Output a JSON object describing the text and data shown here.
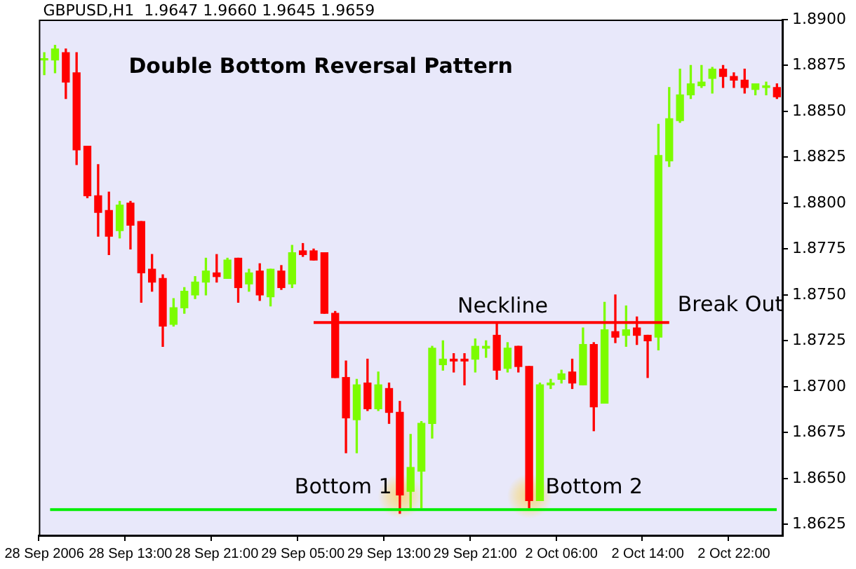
{
  "chart_data": {
    "type": "candlestick",
    "title": "Double Bottom Reversal Pattern",
    "subtitle": "GBPUSD,H1  1.9647 1.9660 1.9645 1.9659",
    "categories": [
      "28 Sep 2006",
      null,
      null,
      null,
      null,
      null,
      null,
      null,
      "28 Sep 13:00",
      null,
      null,
      null,
      null,
      null,
      null,
      null,
      "28 Sep 21:00",
      null,
      null,
      null,
      null,
      null,
      null,
      null,
      "29 Sep 05:00",
      null,
      null,
      null,
      null,
      null,
      null,
      null,
      "29 Sep 13:00",
      null,
      null,
      null,
      null,
      null,
      null,
      null,
      "29 Sep 21:00",
      null,
      null,
      null,
      null,
      null,
      null,
      null,
      "2 Oct 06:00",
      null,
      null,
      null,
      null,
      null,
      null,
      null,
      "2 Oct 14:00",
      null,
      null,
      null,
      null,
      null,
      null,
      null,
      "2 Oct 22:00",
      null,
      null,
      null,
      null
    ],
    "ohlc": [
      [
        1.8878,
        1.8882,
        1.887,
        1.8878
      ],
      [
        1.8878,
        1.8886,
        1.8871,
        1.8884
      ],
      [
        1.8882,
        1.8884,
        1.8857,
        1.8866
      ],
      [
        1.8871,
        1.8882,
        1.8821,
        1.8829
      ],
      [
        1.8831,
        1.8831,
        1.8803,
        1.8804
      ],
      [
        1.8804,
        1.8821,
        1.8782,
        1.8795
      ],
      [
        1.8796,
        1.8806,
        1.8772,
        1.8782
      ],
      [
        1.8785,
        1.8801,
        1.8781,
        1.8799
      ],
      [
        1.88,
        1.8801,
        1.8775,
        1.8788
      ],
      [
        1.879,
        1.879,
        1.8746,
        1.8762
      ],
      [
        1.8764,
        1.8772,
        1.8752,
        1.8757
      ],
      [
        1.8759,
        1.8761,
        1.8722,
        1.8733
      ],
      [
        1.8734,
        1.8748,
        1.8733,
        1.8743
      ],
      [
        1.8743,
        1.8754,
        1.874,
        1.8752
      ],
      [
        1.875,
        1.876,
        1.8748,
        1.8757
      ],
      [
        1.8757,
        1.877,
        1.875,
        1.8763
      ],
      [
        1.8762,
        1.8772,
        1.8757,
        1.876
      ],
      [
        1.8759,
        1.877,
        1.8759,
        1.8769
      ],
      [
        1.877,
        1.877,
        1.8746,
        1.8754
      ],
      [
        1.8756,
        1.8764,
        1.8752,
        1.8762
      ],
      [
        1.8763,
        1.8767,
        1.8747,
        1.875
      ],
      [
        1.8749,
        1.8764,
        1.8744,
        1.8764
      ],
      [
        1.8763,
        1.8766,
        1.8753,
        1.8754
      ],
      [
        1.8756,
        1.8777,
        1.8754,
        1.8773
      ],
      [
        1.8774,
        1.8778,
        1.8771,
        1.8772
      ],
      [
        1.8774,
        1.8775,
        1.8769,
        1.8769
      ],
      [
        1.8773,
        1.8773,
        1.874,
        1.874
      ],
      [
        1.874,
        1.8741,
        1.8705,
        1.8705
      ],
      [
        1.8705,
        1.8714,
        1.8664,
        1.8683
      ],
      [
        1.8682,
        1.8704,
        1.8664,
        1.8701
      ],
      [
        1.8702,
        1.8715,
        1.8687,
        1.8688
      ],
      [
        1.8688,
        1.8708,
        1.8687,
        1.8701
      ],
      [
        1.8699,
        1.8702,
        1.868,
        1.8686
      ],
      [
        1.8686,
        1.8692,
        1.8631,
        1.8641
      ],
      [
        1.8643,
        1.8674,
        1.8634,
        1.8656
      ],
      [
        1.8654,
        1.8681,
        1.8634,
        1.868
      ],
      [
        1.868,
        1.8722,
        1.8672,
        1.8721
      ],
      [
        1.8712,
        1.8725,
        1.8709,
        1.8715
      ],
      [
        1.8715,
        1.8718,
        1.8708,
        1.8714
      ],
      [
        1.8715,
        1.8718,
        1.8701,
        1.8714
      ],
      [
        1.8715,
        1.8726,
        1.8708,
        1.8722
      ],
      [
        1.8721,
        1.8725,
        1.8716,
        1.8722
      ],
      [
        1.8728,
        1.8735,
        1.8704,
        1.8709
      ],
      [
        1.871,
        1.8724,
        1.8708,
        1.8721
      ],
      [
        1.8722,
        1.8722,
        1.8708,
        1.8711
      ],
      [
        1.8711,
        1.8711,
        1.8634,
        1.8638
      ],
      [
        1.8638,
        1.8702,
        1.8638,
        1.8701
      ],
      [
        1.8701,
        1.8704,
        1.8699,
        1.8702
      ],
      [
        1.8704,
        1.8709,
        1.8702,
        1.8707
      ],
      [
        1.8708,
        1.8715,
        1.8699,
        1.8702
      ],
      [
        1.8701,
        1.8732,
        1.8701,
        1.8723
      ],
      [
        1.8723,
        1.8724,
        1.8676,
        1.8689
      ],
      [
        1.8691,
        1.8746,
        1.8691,
        1.8731
      ],
      [
        1.873,
        1.875,
        1.8724,
        1.8727
      ],
      [
        1.8728,
        1.8744,
        1.8722,
        1.8731
      ],
      [
        1.8732,
        1.8738,
        1.8723,
        1.8728
      ],
      [
        1.8728,
        1.8728,
        1.8705,
        1.8725
      ],
      [
        1.8727,
        1.8843,
        1.872,
        1.8826
      ],
      [
        1.8823,
        1.8863,
        1.882,
        1.8846
      ],
      [
        1.8845,
        1.8873,
        1.8844,
        1.8859
      ],
      [
        1.8859,
        1.8875,
        1.8857,
        1.8865
      ],
      [
        1.8864,
        1.8875,
        1.8863,
        1.8866
      ],
      [
        1.8868,
        1.8874,
        1.886,
        1.8873
      ],
      [
        1.8873,
        1.8875,
        1.8863,
        1.8869
      ],
      [
        1.8869,
        1.8871,
        1.8863,
        1.8867
      ],
      [
        1.8867,
        1.8873,
        1.886,
        1.8863
      ],
      [
        1.8862,
        1.8865,
        1.8859,
        1.8865
      ],
      [
        1.8863,
        1.8866,
        1.8859,
        1.8864
      ],
      [
        1.8863,
        1.8865,
        1.8857,
        1.8858
      ]
    ],
    "colors": [
      "#7cfc00",
      "#7cfc00",
      "#ff0000",
      "#ff0000",
      "#ff0000",
      "#ff0000",
      "#ff0000",
      "#7cfc00",
      "#ff0000",
      "#ff0000",
      "#ff0000",
      "#ff0000",
      "#7cfc00",
      "#7cfc00",
      "#7cfc00",
      "#7cfc00",
      "#ff0000",
      "#7cfc00",
      "#ff0000",
      "#7cfc00",
      "#ff0000",
      "#7cfc00",
      "#ff0000",
      "#7cfc00",
      "#ff0000",
      "#ff0000",
      "#ff0000",
      "#ff0000",
      "#ff0000",
      "#7cfc00",
      "#ff0000",
      "#7cfc00",
      "#ff0000",
      "#ff0000",
      "#7cfc00",
      "#7cfc00",
      "#7cfc00",
      "#7cfc00",
      "#ff0000",
      "#ff0000",
      "#7cfc00",
      "#7cfc00",
      "#ff0000",
      "#7cfc00",
      "#ff0000",
      "#ff0000",
      "#7cfc00",
      "#7cfc00",
      "#7cfc00",
      "#ff0000",
      "#7cfc00",
      "#ff0000",
      "#7cfc00",
      "#ff0000",
      "#7cfc00",
      "#ff0000",
      "#ff0000",
      "#7cfc00",
      "#7cfc00",
      "#7cfc00",
      "#7cfc00",
      "#7cfc00",
      "#7cfc00",
      "#ff0000",
      "#ff0000",
      "#ff0000",
      "#7cfc00",
      "#7cfc00",
      "#ff0000"
    ],
    "series": [
      {
        "type": "line",
        "name": "Neckline",
        "color": "#ff0000",
        "values": [
          null,
          null,
          null,
          null,
          null,
          null,
          null,
          null,
          null,
          null,
          null,
          null,
          null,
          null,
          null,
          null,
          null,
          null,
          null,
          null,
          null,
          null,
          null,
          null,
          null,
          1.8735,
          1.8735,
          1.8735,
          1.8735,
          1.8735,
          1.8735,
          1.8735,
          1.8735,
          1.8735,
          1.8735,
          1.8735,
          1.8735,
          1.8735,
          1.8735,
          1.8735,
          1.8735,
          1.8735,
          1.8735,
          1.8735,
          1.8735,
          1.8735,
          1.8735,
          1.8735,
          1.8735,
          1.8735,
          1.8735,
          1.8735,
          1.8735,
          1.8735,
          1.8735,
          1.8735,
          1.8735,
          1.8735,
          1.8735,
          null,
          null,
          null,
          null,
          null,
          null,
          null,
          null,
          null,
          null
        ]
      }
    ],
    "ref_lines": [
      {
        "axis": "y",
        "value": 1.8633,
        "color": "#00ee00"
      }
    ],
    "annotations": [
      "Bottom 1",
      "Bottom 2",
      "Break Out"
    ],
    "ylim": [
      1.8619,
      1.89
    ],
    "yticks": [
      {
        "value": 1.8625,
        "label": "1.8625"
      },
      {
        "value": 1.865,
        "label": "1.8650"
      },
      {
        "value": 1.8675,
        "label": "1.8675"
      },
      {
        "value": 1.87,
        "label": "1.8700"
      },
      {
        "value": 1.8725,
        "label": "1.8725"
      },
      {
        "value": 1.875,
        "label": "1.8750"
      },
      {
        "value": 1.8775,
        "label": "1.8775"
      },
      {
        "value": 1.88,
        "label": "1.8800"
      },
      {
        "value": 1.8825,
        "label": "1.8825"
      },
      {
        "value": 1.885,
        "label": "1.8850"
      },
      {
        "value": 1.8875,
        "label": "1.8875"
      },
      {
        "value": 1.89,
        "label": "1.8900"
      }
    ],
    "grid": false,
    "legend": false
  }
}
